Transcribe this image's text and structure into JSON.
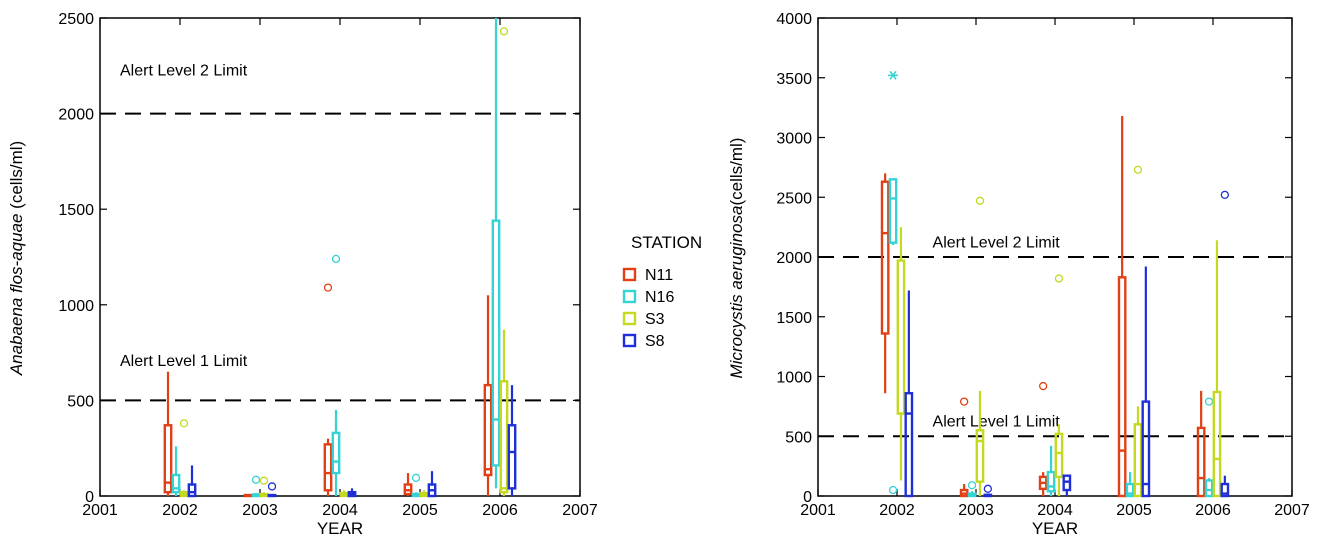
{
  "chart_data": [
    {
      "type": "boxplot",
      "xlabel": "YEAR",
      "ylabel_italic": "Anabaena flos-aquae",
      "ylabel_unit": " (cells/ml)",
      "xlim": [
        2001,
        2007
      ],
      "ylim": [
        0,
        2500
      ],
      "xticks": [
        2001,
        2002,
        2003,
        2004,
        2005,
        2006,
        2007
      ],
      "yticks": [
        0,
        500,
        1000,
        1500,
        2000,
        2500
      ],
      "reference_lines": [
        {
          "y": 2000,
          "label": "Alert Level 2 Limit",
          "label_x": 2001.25,
          "label_y": 2200
        },
        {
          "y": 500,
          "label": "Alert Level 1 Limit",
          "label_x": 2001.25,
          "label_y": 680
        }
      ],
      "series": [
        {
          "name": "N11",
          "boxes": [
            {
              "x": 2002,
              "min": 0,
              "q1": 20,
              "median": 70,
              "q3": 370,
              "max": 650,
              "outliers": []
            },
            {
              "x": 2003,
              "min": 0,
              "q1": 0,
              "median": 2,
              "q3": 5,
              "max": 10,
              "outliers": []
            },
            {
              "x": 2004,
              "min": 0,
              "q1": 30,
              "median": 120,
              "q3": 270,
              "max": 300,
              "outliers": [
                1090
              ]
            },
            {
              "x": 2005,
              "min": 0,
              "q1": 10,
              "median": 30,
              "q3": 60,
              "max": 120,
              "outliers": []
            },
            {
              "x": 2006,
              "min": 0,
              "q1": 110,
              "median": 140,
              "q3": 580,
              "max": 1050,
              "outliers": []
            }
          ]
        },
        {
          "name": "N16",
          "boxes": [
            {
              "x": 2002,
              "min": 0,
              "q1": 20,
              "median": 40,
              "q3": 110,
              "max": 260,
              "outliers": []
            },
            {
              "x": 2003,
              "min": 0,
              "q1": 0,
              "median": 3,
              "q3": 8,
              "max": 15,
              "outliers": [
                85
              ]
            },
            {
              "x": 2004,
              "min": 0,
              "q1": 120,
              "median": 180,
              "q3": 330,
              "max": 450,
              "outliers": [
                1240
              ]
            },
            {
              "x": 2005,
              "min": 0,
              "q1": 0,
              "median": 5,
              "q3": 10,
              "max": 20,
              "outliers": [
                95
              ]
            },
            {
              "x": 2006,
              "min": 40,
              "q1": 160,
              "median": 400,
              "q3": 1440,
              "max": 2500,
              "outliers": []
            }
          ]
        },
        {
          "name": "S3",
          "boxes": [
            {
              "x": 2002,
              "min": 0,
              "q1": 0,
              "median": 10,
              "q3": 20,
              "max": 30,
              "outliers": [
                380
              ]
            },
            {
              "x": 2003,
              "min": 0,
              "q1": 0,
              "median": 3,
              "q3": 10,
              "max": 20,
              "outliers": [
                80
              ]
            },
            {
              "x": 2004,
              "min": 0,
              "q1": 0,
              "median": 5,
              "q3": 15,
              "max": 30,
              "outliers": []
            },
            {
              "x": 2005,
              "min": 0,
              "q1": 0,
              "median": 5,
              "q3": 15,
              "max": 30,
              "outliers": []
            },
            {
              "x": 2006,
              "min": 0,
              "q1": 20,
              "median": 40,
              "q3": 600,
              "max": 870,
              "outliers": [
                2430
              ]
            }
          ]
        },
        {
          "name": "S8",
          "boxes": [
            {
              "x": 2002,
              "min": 0,
              "q1": 0,
              "median": 20,
              "q3": 60,
              "max": 160,
              "outliers": []
            },
            {
              "x": 2003,
              "min": 0,
              "q1": 0,
              "median": 2,
              "q3": 5,
              "max": 10,
              "outliers": [
                50
              ]
            },
            {
              "x": 2004,
              "min": 0,
              "q1": 0,
              "median": 10,
              "q3": 20,
              "max": 40,
              "outliers": []
            },
            {
              "x": 2005,
              "min": 0,
              "q1": 0,
              "median": 30,
              "q3": 60,
              "max": 130,
              "outliers": []
            },
            {
              "x": 2006,
              "min": 0,
              "q1": 40,
              "median": 230,
              "q3": 370,
              "max": 580,
              "outliers": []
            }
          ]
        }
      ]
    },
    {
      "type": "boxplot",
      "xlabel": "YEAR",
      "ylabel_italic": "Microcystis aeruginosa",
      "ylabel_unit": "(cells/ml)",
      "xlim": [
        2001,
        2007
      ],
      "ylim": [
        0,
        4000
      ],
      "xticks": [
        2001,
        2002,
        2003,
        2004,
        2005,
        2006,
        2007
      ],
      "yticks": [
        0,
        500,
        1000,
        1500,
        2000,
        2500,
        3000,
        3500,
        4000
      ],
      "reference_lines": [
        {
          "y": 2000,
          "label": "Alert Level 2 Limit",
          "label_x": 2002.45,
          "label_y": 2080
        },
        {
          "y": 500,
          "label": "Alert Level 1 Limit",
          "label_x": 2002.45,
          "label_y": 580
        }
      ],
      "series": [
        {
          "name": "N11",
          "boxes": [
            {
              "x": 2002,
              "min": 860,
              "q1": 1360,
              "median": 2200,
              "q3": 2630,
              "max": 2700,
              "outliers": []
            },
            {
              "x": 2003,
              "min": 0,
              "q1": 0,
              "median": 20,
              "q3": 50,
              "max": 100,
              "outliers": [
                790
              ]
            },
            {
              "x": 2004,
              "min": 0,
              "q1": 60,
              "median": 110,
              "q3": 160,
              "max": 200,
              "outliers": [
                920
              ]
            },
            {
              "x": 2005,
              "min": 0,
              "q1": 0,
              "median": 380,
              "q3": 1830,
              "max": 3180,
              "outliers": []
            },
            {
              "x": 2006,
              "min": 0,
              "q1": 0,
              "median": 150,
              "q3": 570,
              "max": 880,
              "outliers": []
            }
          ]
        },
        {
          "name": "N16",
          "boxes": [
            {
              "x": 2002,
              "min": 2100,
              "q1": 2120,
              "median": 2490,
              "q3": 2650,
              "max": 2660,
              "outliers": [
                3520,
                50
              ]
            },
            {
              "x": 2003,
              "min": 0,
              "q1": 0,
              "median": 5,
              "q3": 20,
              "max": 40,
              "outliers": [
                90
              ]
            },
            {
              "x": 2004,
              "min": 0,
              "q1": 40,
              "median": 80,
              "q3": 200,
              "max": 420,
              "outliers": []
            },
            {
              "x": 2005,
              "min": 0,
              "q1": 0,
              "median": 20,
              "q3": 100,
              "max": 200,
              "outliers": []
            },
            {
              "x": 2006,
              "min": 0,
              "q1": 0,
              "median": 50,
              "q3": 130,
              "max": 150,
              "outliers": [
                790
              ]
            }
          ]
        },
        {
          "name": "S3",
          "boxes": [
            {
              "x": 2002,
              "min": 130,
              "q1": 690,
              "median": 690,
              "q3": 1970,
              "max": 2250,
              "outliers": []
            },
            {
              "x": 2003,
              "min": 0,
              "q1": 120,
              "median": 460,
              "q3": 550,
              "max": 880,
              "outliers": [
                2470
              ]
            },
            {
              "x": 2004,
              "min": 0,
              "q1": 160,
              "median": 360,
              "q3": 520,
              "max": 600,
              "outliers": [
                1820
              ]
            },
            {
              "x": 2005,
              "min": 0,
              "q1": 0,
              "median": 100,
              "q3": 600,
              "max": 750,
              "outliers": [
                2730
              ]
            },
            {
              "x": 2006,
              "min": 0,
              "q1": 0,
              "median": 310,
              "q3": 870,
              "max": 2140,
              "outliers": []
            }
          ]
        },
        {
          "name": "S8",
          "boxes": [
            {
              "x": 2002,
              "min": 0,
              "q1": 0,
              "median": 690,
              "q3": 860,
              "max": 1720,
              "outliers": []
            },
            {
              "x": 2003,
              "min": 0,
              "q1": 0,
              "median": 5,
              "q3": 10,
              "max": 20,
              "outliers": [
                60
              ]
            },
            {
              "x": 2004,
              "min": 0,
              "q1": 50,
              "median": 120,
              "q3": 170,
              "max": 180,
              "outliers": []
            },
            {
              "x": 2005,
              "min": 0,
              "q1": 0,
              "median": 100,
              "q3": 790,
              "max": 1920,
              "outliers": []
            },
            {
              "x": 2006,
              "min": 0,
              "q1": 0,
              "median": 20,
              "q3": 100,
              "max": 170,
              "outliers": [
                2520
              ]
            }
          ]
        }
      ]
    }
  ],
  "legend": {
    "title": "STATION",
    "placement": "between-panels",
    "items": [
      {
        "name": "N11",
        "color": "#e23f14"
      },
      {
        "name": "N16",
        "color": "#35d3d6"
      },
      {
        "name": "S3",
        "color": "#c4d920"
      },
      {
        "name": "S8",
        "color": "#1f2fd8"
      }
    ]
  }
}
